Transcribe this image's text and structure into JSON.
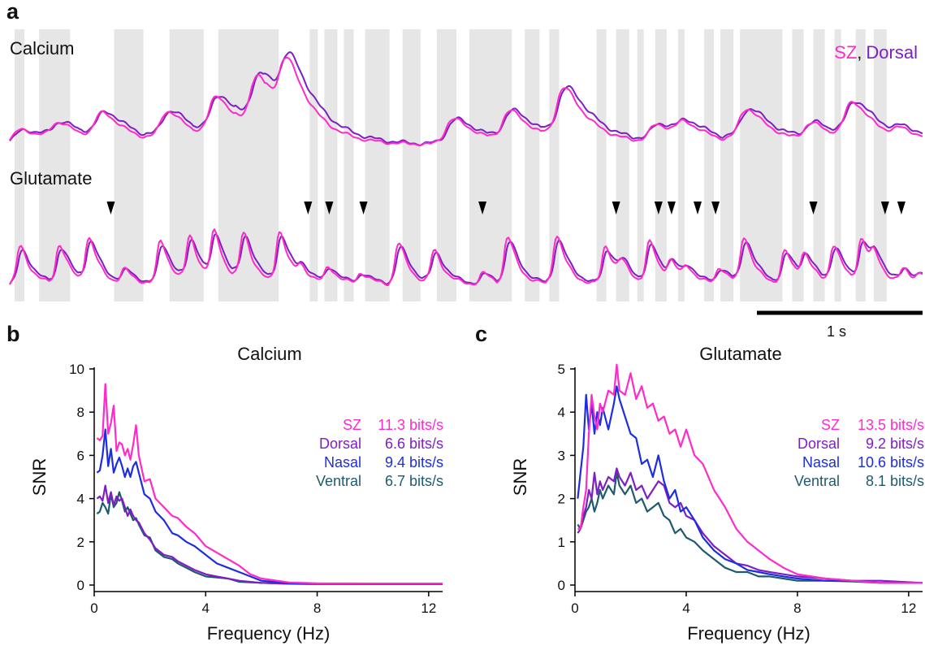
{
  "panel_labels": {
    "a": "a",
    "b": "b",
    "c": "c"
  },
  "colors": {
    "sz": "#ff2bc8",
    "dorsal": "#7d1fc4",
    "nasal": "#1d2de0",
    "ventral": "#1f5a6e",
    "stim_shading": "#e6e6e6",
    "text": "#111111"
  },
  "panel_a": {
    "calcium_label": "Calcium",
    "glutamate_label": "Glutamate",
    "legend_sz": "SZ",
    "legend_comma": ",",
    "legend_dorsal": "Dorsal",
    "scalebar_label": "1 s",
    "time_range_s": [
      0,
      5.6
    ],
    "scalebar_s": 1,
    "stim_on_intervals_s": [
      [
        0.03,
        0.09
      ],
      [
        0.18,
        0.37
      ],
      [
        0.64,
        0.82
      ],
      [
        0.98,
        1.19
      ],
      [
        1.28,
        1.65
      ],
      [
        1.84,
        1.89
      ],
      [
        1.93,
        2.01
      ],
      [
        2.05,
        2.11
      ],
      [
        2.18,
        2.33
      ],
      [
        2.41,
        2.52
      ],
      [
        2.62,
        2.74
      ],
      [
        2.82,
        3.08
      ],
      [
        3.16,
        3.25
      ],
      [
        3.31,
        3.37
      ],
      [
        3.6,
        3.66
      ],
      [
        3.72,
        3.8
      ],
      [
        3.85,
        3.89
      ],
      [
        3.96,
        4.03
      ],
      [
        4.1,
        4.14
      ],
      [
        4.26,
        4.32
      ],
      [
        4.36,
        4.44
      ],
      [
        4.48,
        4.74
      ],
      [
        4.8,
        4.87
      ],
      [
        4.93,
        5.0
      ],
      [
        5.06,
        5.1
      ],
      [
        5.19,
        5.25
      ],
      [
        5.3,
        5.38
      ]
    ],
    "arrowhead_times_s": [
      0.62,
      1.83,
      1.96,
      2.17,
      2.9,
      3.72,
      3.98,
      4.06,
      4.22,
      4.33,
      4.93,
      5.37,
      5.47
    ],
    "calcium_events": [
      [
        0.05,
        0.25
      ],
      [
        0.28,
        0.3
      ],
      [
        0.55,
        0.45
      ],
      [
        0.95,
        0.5
      ],
      [
        1.25,
        0.7
      ],
      [
        1.5,
        0.95
      ],
      [
        1.68,
        1.0
      ],
      [
        2.7,
        0.42
      ],
      [
        3.05,
        0.5
      ],
      [
        3.38,
        0.85
      ],
      [
        3.95,
        0.3
      ],
      [
        4.12,
        0.25
      ],
      [
        4.5,
        0.55
      ],
      [
        4.9,
        0.3
      ],
      [
        5.15,
        0.62
      ],
      [
        5.45,
        0.15
      ]
    ],
    "glutamate_events": [
      [
        0.06,
        0.7
      ],
      [
        0.3,
        0.72
      ],
      [
        0.48,
        0.82
      ],
      [
        0.7,
        0.25
      ],
      [
        0.92,
        0.8
      ],
      [
        1.1,
        0.85
      ],
      [
        1.25,
        0.9
      ],
      [
        1.43,
        0.9
      ],
      [
        1.65,
        0.95
      ],
      [
        1.78,
        0.25
      ],
      [
        1.95,
        0.3
      ],
      [
        2.15,
        0.2
      ],
      [
        2.38,
        0.75
      ],
      [
        2.6,
        0.6
      ],
      [
        2.9,
        0.2
      ],
      [
        3.05,
        0.85
      ],
      [
        3.35,
        0.9
      ],
      [
        3.65,
        0.7
      ],
      [
        3.75,
        0.3
      ],
      [
        3.92,
        0.75
      ],
      [
        4.05,
        0.35
      ],
      [
        4.15,
        0.25
      ],
      [
        4.35,
        0.3
      ],
      [
        4.5,
        0.85
      ],
      [
        4.75,
        0.6
      ],
      [
        4.87,
        0.5
      ],
      [
        5.05,
        0.7
      ],
      [
        5.22,
        0.8
      ],
      [
        5.3,
        0.35
      ],
      [
        5.48,
        0.25
      ],
      [
        5.58,
        0.15
      ]
    ]
  },
  "chart_data": [
    {
      "type": "line",
      "panel": "b",
      "title": "Calcium",
      "xlabel": "Frequency (Hz)",
      "ylabel": "SNR",
      "xlim": [
        0,
        12.5
      ],
      "ylim": [
        0,
        10
      ],
      "xticks": [
        0,
        4,
        8,
        12
      ],
      "yticks": [
        0,
        2,
        4,
        6,
        8,
        10
      ],
      "legend": [
        {
          "name": "SZ",
          "value": "11.3 bits/s"
        },
        {
          "name": "Dorsal",
          "value": "6.6 bits/s"
        },
        {
          "name": "Nasal",
          "value": "9.4 bits/s"
        },
        {
          "name": "Ventral",
          "value": "6.7 bits/s"
        }
      ],
      "series": [
        {
          "name": "SZ",
          "x": [
            0.1,
            0.2,
            0.3,
            0.4,
            0.5,
            0.6,
            0.7,
            0.8,
            0.9,
            1.0,
            1.1,
            1.2,
            1.3,
            1.4,
            1.5,
            1.6,
            1.8,
            2.0,
            2.2,
            2.5,
            2.8,
            3.0,
            3.3,
            3.6,
            4.0,
            4.4,
            4.8,
            5.2,
            5.6,
            6.0,
            7.0,
            8.0,
            10.0,
            12.5
          ],
          "values": [
            6.8,
            6.7,
            6.9,
            9.3,
            7.0,
            7.5,
            8.3,
            6.2,
            6.6,
            6.5,
            6.0,
            6.3,
            5.8,
            6.5,
            7.4,
            6.0,
            4.8,
            4.9,
            4.0,
            3.6,
            3.2,
            3.1,
            2.7,
            2.4,
            1.8,
            1.5,
            1.2,
            0.9,
            0.5,
            0.3,
            0.12,
            0.08,
            0.07,
            0.07
          ]
        },
        {
          "name": "Dorsal",
          "x": [
            0.1,
            0.2,
            0.3,
            0.4,
            0.5,
            0.6,
            0.7,
            0.8,
            0.9,
            1.0,
            1.1,
            1.2,
            1.3,
            1.4,
            1.5,
            1.6,
            1.8,
            2.0,
            2.2,
            2.5,
            2.8,
            3.0,
            3.3,
            3.6,
            4.0,
            4.4,
            4.8,
            5.2,
            6.0,
            7.0,
            8.0,
            10.0,
            12.5
          ],
          "values": [
            4.0,
            4.1,
            3.9,
            4.6,
            3.8,
            4.3,
            3.7,
            4.1,
            3.9,
            4.0,
            3.6,
            3.2,
            3.5,
            3.2,
            3.0,
            2.9,
            2.4,
            2.1,
            1.7,
            1.4,
            1.3,
            1.1,
            0.9,
            0.7,
            0.5,
            0.4,
            0.3,
            0.2,
            0.1,
            0.06,
            0.05,
            0.05,
            0.05
          ]
        },
        {
          "name": "Nasal",
          "x": [
            0.1,
            0.2,
            0.3,
            0.4,
            0.5,
            0.6,
            0.7,
            0.8,
            0.9,
            1.0,
            1.1,
            1.2,
            1.3,
            1.4,
            1.5,
            1.6,
            1.8,
            2.0,
            2.2,
            2.5,
            2.8,
            3.0,
            3.3,
            3.6,
            4.0,
            4.4,
            4.8,
            5.2,
            5.6,
            6.0,
            7.0,
            8.0,
            10.0,
            12.5
          ],
          "values": [
            5.2,
            5.3,
            6.0,
            7.2,
            5.5,
            6.3,
            5.2,
            5.6,
            5.9,
            5.5,
            5.0,
            5.4,
            5.0,
            5.5,
            5.7,
            5.2,
            4.2,
            4.0,
            3.4,
            3.0,
            2.4,
            2.3,
            2.0,
            1.8,
            1.4,
            1.0,
            0.8,
            0.6,
            0.4,
            0.2,
            0.08,
            0.06,
            0.05,
            0.05
          ]
        },
        {
          "name": "Ventral",
          "x": [
            0.1,
            0.2,
            0.3,
            0.4,
            0.5,
            0.6,
            0.7,
            0.8,
            0.9,
            1.0,
            1.1,
            1.2,
            1.3,
            1.4,
            1.5,
            1.6,
            1.8,
            2.0,
            2.2,
            2.5,
            2.8,
            3.0,
            3.3,
            3.6,
            4.0,
            4.4,
            4.8,
            5.2,
            6.0,
            7.0,
            8.0,
            10.0,
            12.5
          ],
          "values": [
            3.3,
            3.4,
            3.8,
            3.6,
            3.3,
            4.2,
            3.6,
            3.8,
            4.3,
            3.9,
            3.4,
            3.6,
            3.3,
            3.0,
            3.1,
            2.8,
            2.3,
            2.2,
            1.6,
            1.3,
            1.2,
            1.0,
            0.8,
            0.6,
            0.4,
            0.35,
            0.3,
            0.15,
            0.1,
            0.06,
            0.05,
            0.05,
            0.05
          ]
        }
      ]
    },
    {
      "type": "line",
      "panel": "c",
      "title": "Glutamate",
      "xlabel": "Frequency (Hz)",
      "ylabel": "SNR",
      "xlim": [
        0,
        12.5
      ],
      "ylim": [
        0,
        5
      ],
      "xticks": [
        0,
        4,
        8,
        12
      ],
      "yticks": [
        0,
        1,
        2,
        3,
        4,
        5
      ],
      "legend": [
        {
          "name": "SZ",
          "value": "13.5 bits/s"
        },
        {
          "name": "Dorsal",
          "value": "9.2 bits/s"
        },
        {
          "name": "Nasal",
          "value": "10.6 bits/s"
        },
        {
          "name": "Ventral",
          "value": "8.1 bits/s"
        }
      ],
      "series": [
        {
          "name": "SZ",
          "x": [
            0.1,
            0.2,
            0.3,
            0.4,
            0.5,
            0.6,
            0.7,
            0.8,
            0.9,
            1.0,
            1.2,
            1.4,
            1.5,
            1.6,
            1.8,
            2.0,
            2.2,
            2.4,
            2.6,
            2.8,
            3.0,
            3.2,
            3.4,
            3.6,
            3.8,
            4.0,
            4.3,
            4.6,
            5.0,
            5.4,
            5.8,
            6.2,
            6.6,
            7.0,
            7.5,
            8.0,
            9.0,
            10.0,
            11.0,
            12.5
          ],
          "values": [
            1.3,
            1.3,
            1.8,
            2.2,
            3.5,
            4.4,
            3.9,
            3.6,
            4.2,
            4.0,
            4.5,
            4.4,
            5.1,
            4.5,
            4.4,
            4.9,
            4.3,
            4.6,
            4.1,
            4.2,
            3.8,
            3.9,
            3.5,
            3.6,
            3.2,
            3.6,
            3.0,
            2.8,
            2.2,
            1.8,
            1.3,
            1.0,
            0.8,
            0.6,
            0.4,
            0.25,
            0.15,
            0.1,
            0.05,
            0.05
          ]
        },
        {
          "name": "Dorsal",
          "x": [
            0.1,
            0.2,
            0.3,
            0.4,
            0.5,
            0.6,
            0.7,
            0.8,
            0.9,
            1.0,
            1.2,
            1.4,
            1.5,
            1.6,
            1.8,
            2.0,
            2.2,
            2.4,
            2.6,
            2.8,
            3.0,
            3.2,
            3.4,
            3.6,
            3.8,
            4.0,
            4.3,
            4.6,
            5.0,
            5.4,
            5.8,
            6.2,
            6.6,
            7.0,
            7.5,
            8.0,
            9.0,
            10.0,
            11.0,
            12.5
          ],
          "values": [
            1.2,
            1.3,
            1.6,
            1.8,
            2.2,
            2.0,
            2.6,
            2.1,
            2.4,
            2.2,
            2.5,
            2.4,
            2.7,
            2.5,
            2.3,
            2.6,
            2.2,
            2.3,
            2.0,
            2.2,
            2.4,
            2.3,
            1.9,
            1.8,
            1.9,
            1.6,
            1.5,
            1.2,
            0.9,
            0.7,
            0.5,
            0.45,
            0.35,
            0.3,
            0.25,
            0.2,
            0.15,
            0.1,
            0.1,
            0.05
          ]
        },
        {
          "name": "Nasal",
          "x": [
            0.1,
            0.2,
            0.3,
            0.4,
            0.5,
            0.6,
            0.7,
            0.8,
            0.9,
            1.0,
            1.2,
            1.4,
            1.5,
            1.6,
            1.8,
            2.0,
            2.2,
            2.4,
            2.6,
            2.8,
            3.0,
            3.2,
            3.4,
            3.6,
            3.8,
            4.0,
            4.3,
            4.6,
            5.0,
            5.4,
            5.8,
            6.2,
            6.6,
            7.0,
            7.5,
            8.0,
            9.0,
            10.0,
            11.0,
            12.5
          ],
          "values": [
            2.0,
            2.6,
            3.2,
            4.4,
            3.6,
            4.2,
            3.5,
            4.0,
            3.7,
            4.1,
            3.6,
            4.2,
            4.6,
            4.3,
            3.9,
            3.5,
            3.4,
            2.8,
            2.9,
            2.5,
            3.0,
            2.4,
            2.0,
            2.2,
            1.7,
            1.8,
            1.5,
            1.1,
            0.8,
            0.6,
            0.5,
            0.35,
            0.3,
            0.25,
            0.2,
            0.15,
            0.1,
            0.1,
            0.05,
            0.05
          ]
        },
        {
          "name": "Ventral",
          "x": [
            0.1,
            0.2,
            0.3,
            0.4,
            0.5,
            0.6,
            0.7,
            0.8,
            0.9,
            1.0,
            1.2,
            1.4,
            1.5,
            1.6,
            1.8,
            2.0,
            2.2,
            2.4,
            2.6,
            2.8,
            3.0,
            3.2,
            3.4,
            3.6,
            3.8,
            4.0,
            4.3,
            4.6,
            5.0,
            5.4,
            5.8,
            6.2,
            6.6,
            7.0,
            7.5,
            8.0,
            9.0,
            10.0,
            11.0,
            12.5
          ],
          "values": [
            1.4,
            1.3,
            1.5,
            1.7,
            1.8,
            2.0,
            1.7,
            1.9,
            2.2,
            2.0,
            2.3,
            2.1,
            2.6,
            2.3,
            2.1,
            2.3,
            1.9,
            2.0,
            1.7,
            1.8,
            1.9,
            1.6,
            1.5,
            1.2,
            1.3,
            1.1,
            1.0,
            0.8,
            0.6,
            0.4,
            0.3,
            0.3,
            0.2,
            0.2,
            0.15,
            0.1,
            0.1,
            0.08,
            0.05,
            0.05
          ]
        }
      ]
    }
  ]
}
